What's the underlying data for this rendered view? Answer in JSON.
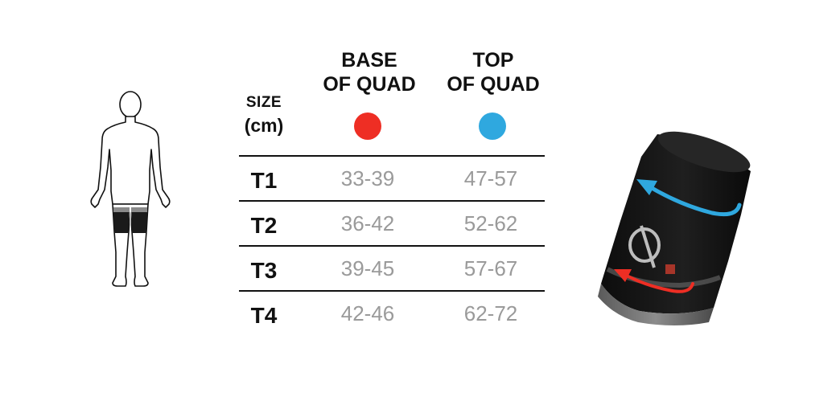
{
  "size_header": {
    "line1": "SIZE",
    "line2": "(cm)"
  },
  "columns": [
    {
      "line1": "BASE",
      "line2": "OF QUAD",
      "color": "#ee2e24",
      "icon": "red-dot-icon"
    },
    {
      "line1": "TOP",
      "line2": "OF QUAD",
      "color": "#2fa8df",
      "icon": "blue-dot-icon"
    }
  ],
  "rows": [
    {
      "size": "T1",
      "base": "33-39",
      "top": "47-57"
    },
    {
      "size": "T2",
      "base": "36-42",
      "top": "52-62"
    },
    {
      "size": "T3",
      "base": "39-45",
      "top": "57-67"
    },
    {
      "size": "T4",
      "base": "42-46",
      "top": "62-72"
    }
  ],
  "illustrations": {
    "body": "body-outline-thigh-highlight-icon",
    "product": "quad-sleeve-product-image",
    "arrows": [
      "blue-arrow-icon",
      "red-arrow-icon"
    ]
  }
}
